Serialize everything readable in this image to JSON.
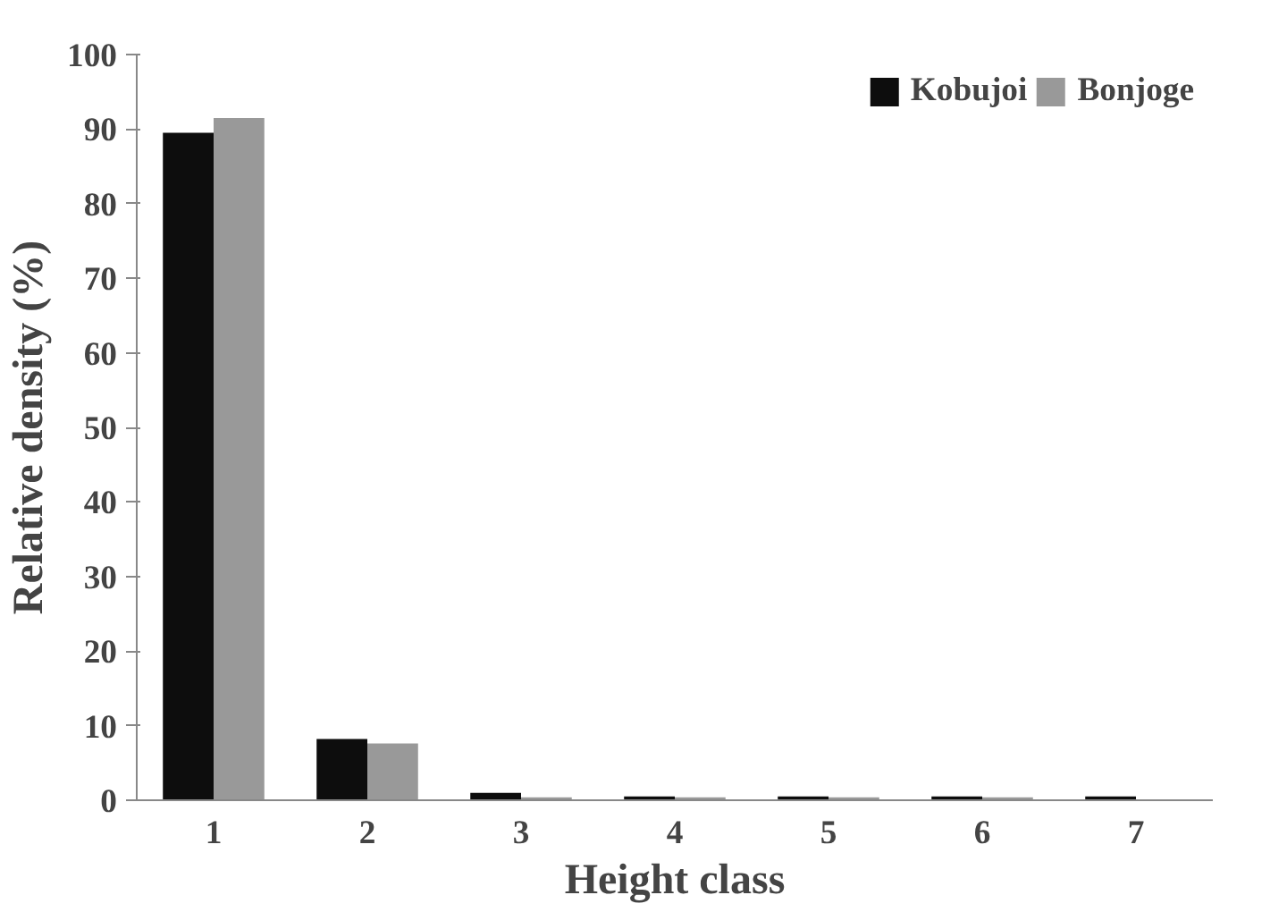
{
  "chart_data": {
    "type": "bar",
    "xlabel": "Height class",
    "ylabel": "Relative density (%)",
    "categories": [
      "1",
      "2",
      "3",
      "4",
      "5",
      "6",
      "7"
    ],
    "series": [
      {
        "name": "Kobujoi",
        "color": "#0d0d0d",
        "values": [
          89.5,
          8.2,
          1.0,
          0.5,
          0.5,
          0.5,
          0.5
        ]
      },
      {
        "name": "Bonjoge",
        "color": "#999999",
        "values": [
          91.5,
          7.6,
          0.4,
          0.4,
          0.4,
          0.4,
          0.0
        ]
      }
    ],
    "ylim": [
      0,
      100
    ],
    "yticks": [
      0,
      10,
      20,
      30,
      40,
      50,
      60,
      70,
      80,
      90,
      100
    ],
    "grid": false,
    "legend": "top right"
  }
}
